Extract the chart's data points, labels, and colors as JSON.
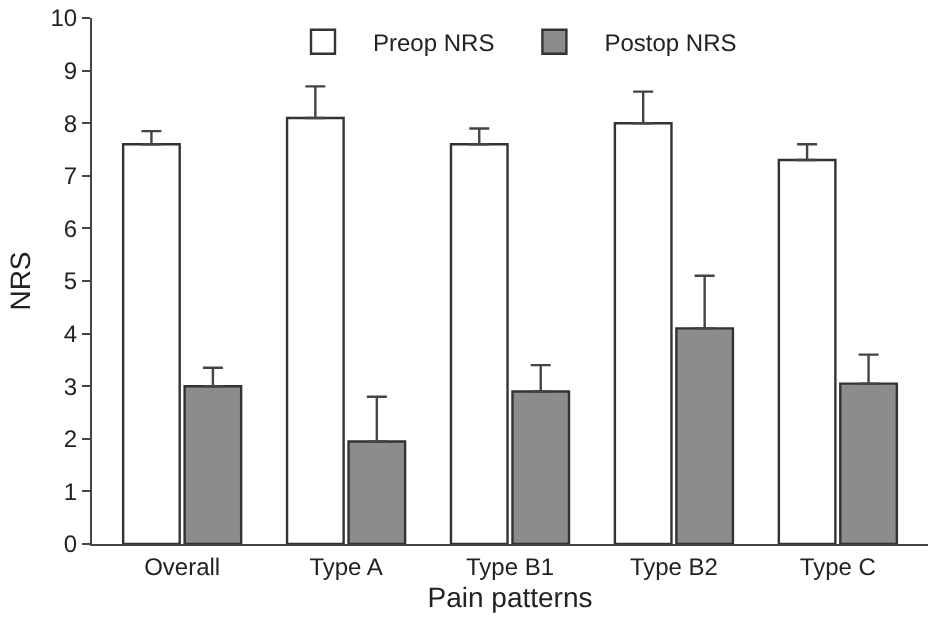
{
  "chart_data": {
    "type": "bar",
    "xlabel": "Pain patterns",
    "ylabel": "NRS",
    "categories": [
      "Overall",
      "Type A",
      "Type B1",
      "Type B2",
      "Type C"
    ],
    "series": [
      {
        "name": "Preop NRS",
        "color": "#ffffff",
        "values": [
          7.6,
          8.1,
          7.6,
          8.0,
          7.3
        ],
        "errors": [
          [
            7.6,
            7.85
          ],
          [
            8.1,
            8.7
          ],
          [
            7.6,
            7.9
          ],
          [
            8.0,
            8.6
          ],
          [
            7.3,
            7.6
          ]
        ]
      },
      {
        "name": "Postop NRS",
        "color": "#8c8c8c",
        "values": [
          3.0,
          1.95,
          2.9,
          4.1,
          3.05
        ],
        "errors": [
          [
            3.0,
            3.35
          ],
          [
            1.95,
            2.8
          ],
          [
            2.9,
            3.4
          ],
          [
            4.1,
            5.1
          ],
          [
            3.05,
            3.6
          ]
        ]
      }
    ],
    "ylim": [
      0,
      10
    ],
    "yticks": [
      0,
      1,
      2,
      3,
      4,
      5,
      6,
      7,
      8,
      9,
      10
    ],
    "grid": false,
    "legend": "top"
  }
}
